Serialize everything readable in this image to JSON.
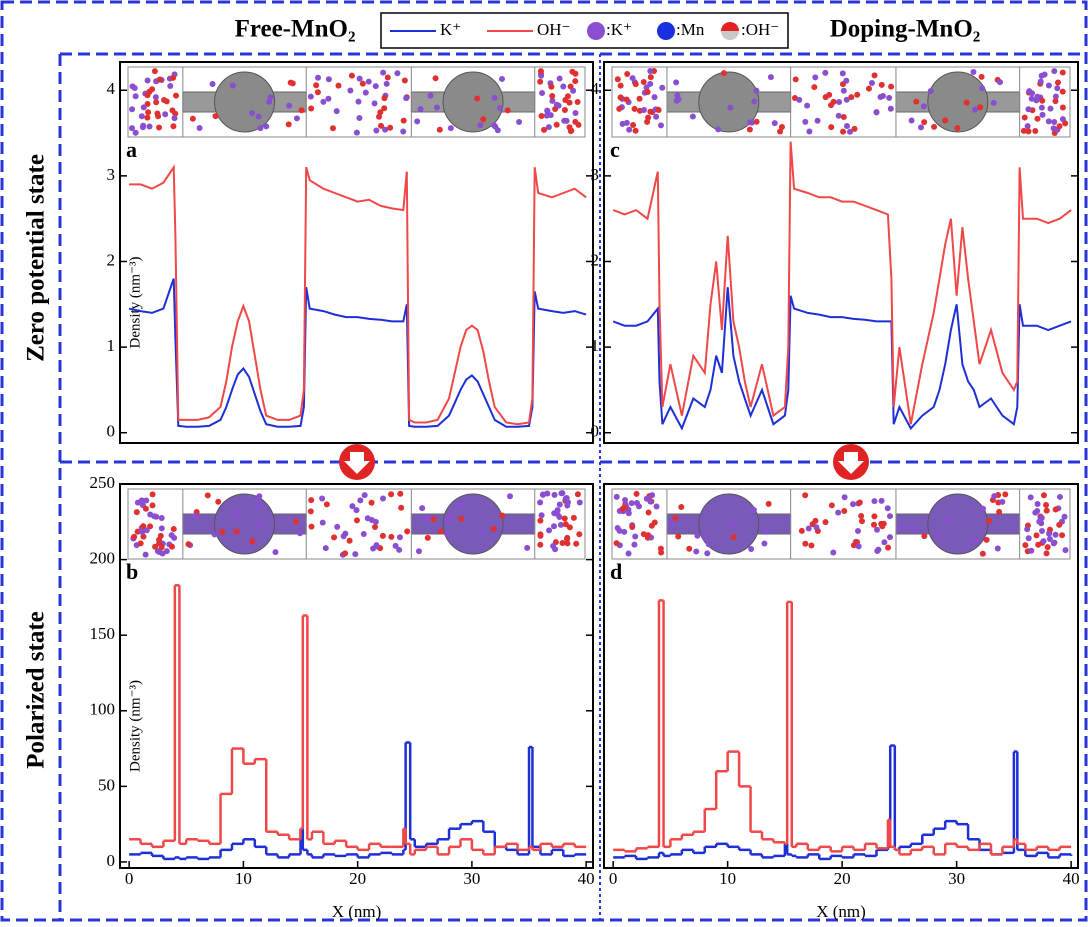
{
  "column_titles": [
    "Free-MnO₂",
    "Doping-MnO₂"
  ],
  "row_titles": [
    "Zero potential state",
    "Polarized state"
  ],
  "atom_legend": [
    ":K⁺",
    ":Mn",
    ":OH⁻"
  ],
  "chart_data": [
    {
      "type": "line",
      "label": "a",
      "y_label": "Density (nm⁻³)",
      "xlim": [
        -0.8,
        40.6
      ],
      "ylim": [
        -0.12,
        4.33
      ],
      "yticks": [
        0,
        1,
        2,
        3,
        4
      ],
      "x": [
        0,
        1,
        2,
        3,
        3.9,
        4.05,
        4.3,
        5,
        6,
        7,
        8,
        8.5,
        9,
        9.5,
        10,
        10.5,
        11,
        11.5,
        12,
        13,
        14,
        15,
        15.3,
        15.5,
        15.8,
        17,
        18,
        19,
        20,
        21,
        22,
        23,
        24,
        24.3,
        24.5,
        25,
        26,
        27,
        28,
        28.5,
        29,
        29.5,
        30,
        30.5,
        31,
        31.5,
        32,
        33,
        34,
        35,
        35.3,
        35.5,
        35.8,
        37,
        38,
        39,
        40
      ],
      "series": [
        {
          "name": "K⁺",
          "color": "#1f2fd6",
          "values": [
            1.45,
            1.42,
            1.4,
            1.45,
            1.8,
            1.1,
            0.08,
            0.07,
            0.07,
            0.08,
            0.15,
            0.3,
            0.5,
            0.68,
            0.75,
            0.65,
            0.45,
            0.25,
            0.1,
            0.07,
            0.07,
            0.08,
            0.3,
            1.7,
            1.45,
            1.42,
            1.38,
            1.35,
            1.35,
            1.33,
            1.32,
            1.3,
            1.3,
            1.5,
            0.08,
            0.07,
            0.07,
            0.08,
            0.2,
            0.35,
            0.5,
            0.62,
            0.67,
            0.6,
            0.45,
            0.3,
            0.15,
            0.07,
            0.07,
            0.08,
            0.3,
            1.65,
            1.45,
            1.42,
            1.4,
            1.42,
            1.38
          ]
        },
        {
          "name": "OH⁻",
          "color": "#f04848",
          "values": [
            2.9,
            2.9,
            2.85,
            2.92,
            3.1,
            2.3,
            0.15,
            0.15,
            0.15,
            0.18,
            0.3,
            0.6,
            1.0,
            1.3,
            1.48,
            1.3,
            0.9,
            0.5,
            0.2,
            0.15,
            0.15,
            0.2,
            0.5,
            3.1,
            2.95,
            2.85,
            2.8,
            2.75,
            2.7,
            2.72,
            2.65,
            2.62,
            2.6,
            3.05,
            0.15,
            0.12,
            0.12,
            0.15,
            0.4,
            0.7,
            1.0,
            1.2,
            1.25,
            1.2,
            0.95,
            0.6,
            0.3,
            0.12,
            0.1,
            0.12,
            0.4,
            3.1,
            2.8,
            2.75,
            2.8,
            2.85,
            2.75
          ]
        }
      ]
    },
    {
      "type": "step",
      "label": "b",
      "y_label": "Density (nm⁻³)",
      "x_label": "X (nm)",
      "xlim": [
        -0.8,
        40.6
      ],
      "ylim": [
        -4,
        250
      ],
      "yticks": [
        0,
        50,
        100,
        150,
        200,
        250
      ],
      "xticks": [
        0,
        10,
        20,
        30,
        40
      ],
      "x": [
        0,
        1,
        2,
        3,
        4,
        4.4,
        5,
        6,
        7,
        8,
        9,
        10,
        11,
        12,
        13,
        14,
        15,
        15.2,
        15.6,
        16,
        17,
        18,
        19,
        20,
        21,
        22,
        23,
        24,
        24.2,
        24.6,
        25,
        26,
        27,
        28,
        29,
        30,
        31,
        32,
        33,
        34,
        35,
        35.3,
        36,
        37,
        38,
        39,
        40
      ],
      "series": [
        {
          "name": "K⁺",
          "color": "#1f2fd6",
          "values": [
            5,
            6,
            4,
            2,
            3,
            2,
            3,
            2,
            3,
            8,
            12,
            15,
            10,
            5,
            3,
            5,
            22,
            8,
            5,
            3,
            5,
            4,
            5,
            3,
            5,
            6,
            5,
            8,
            79,
            15,
            10,
            12,
            15,
            22,
            25,
            27,
            20,
            10,
            8,
            5,
            76,
            10,
            5,
            8,
            4,
            5,
            5
          ]
        },
        {
          "name": "OH⁻",
          "color": "#f04848",
          "values": [
            15,
            12,
            10,
            14,
            183,
            12,
            15,
            14,
            12,
            45,
            75,
            65,
            68,
            20,
            18,
            15,
            22,
            163,
            15,
            20,
            12,
            14,
            10,
            8,
            12,
            10,
            10,
            22,
            12,
            5,
            8,
            10,
            5,
            10,
            15,
            8,
            5,
            10,
            12,
            8,
            10,
            8,
            12,
            10,
            12,
            10,
            10
          ]
        }
      ]
    },
    {
      "type": "line",
      "label": "c",
      "xlim": [
        -0.8,
        40.6
      ],
      "ylim": [
        -0.12,
        4.33
      ],
      "yticks": [
        0,
        1,
        2,
        3,
        4
      ],
      "x": [
        0,
        1,
        2,
        3,
        3.9,
        4.05,
        4.3,
        5,
        6,
        7,
        8,
        8.5,
        9,
        9.5,
        10,
        10.5,
        11,
        11.5,
        12,
        13,
        14,
        15,
        15.3,
        15.5,
        15.8,
        17,
        18,
        19,
        20,
        21,
        22,
        23,
        24,
        24.3,
        24.5,
        25,
        26,
        27,
        28,
        28.5,
        29,
        29.5,
        30,
        30.5,
        31,
        31.5,
        32,
        33,
        34,
        35,
        35.3,
        35.5,
        35.8,
        37,
        38,
        39,
        40
      ],
      "series": [
        {
          "name": "K⁺",
          "color": "#1f2fd6",
          "values": [
            1.3,
            1.25,
            1.25,
            1.3,
            1.45,
            0.6,
            0.1,
            0.3,
            0.05,
            0.4,
            0.3,
            0.5,
            0.9,
            0.7,
            1.7,
            0.9,
            0.6,
            0.4,
            0.2,
            0.5,
            0.1,
            0.2,
            0.5,
            1.6,
            1.45,
            1.4,
            1.38,
            1.35,
            1.35,
            1.33,
            1.32,
            1.3,
            1.3,
            1.3,
            0.1,
            0.3,
            0.05,
            0.2,
            0.3,
            0.5,
            0.8,
            1.2,
            1.5,
            0.8,
            0.6,
            0.5,
            0.3,
            0.4,
            0.2,
            0.1,
            0.3,
            1.5,
            1.25,
            1.25,
            1.2,
            1.25,
            1.3
          ]
        },
        {
          "name": "OH⁻",
          "color": "#f04848",
          "values": [
            2.6,
            2.55,
            2.6,
            2.5,
            3.05,
            1.5,
            0.3,
            0.8,
            0.2,
            0.9,
            0.7,
            1.5,
            2.0,
            1.2,
            2.3,
            1.3,
            1.0,
            0.6,
            0.3,
            0.8,
            0.2,
            0.3,
            1.0,
            3.4,
            2.85,
            2.8,
            2.75,
            2.75,
            2.7,
            2.7,
            2.65,
            2.6,
            2.55,
            1.8,
            0.3,
            1.0,
            0.1,
            0.8,
            1.4,
            1.8,
            2.2,
            2.5,
            1.6,
            2.4,
            1.8,
            1.3,
            0.8,
            1.2,
            0.7,
            0.5,
            0.6,
            3.1,
            2.5,
            2.5,
            2.45,
            2.5,
            2.6
          ]
        }
      ]
    },
    {
      "type": "step",
      "label": "d",
      "x_label": "X (nm)",
      "xlim": [
        -0.8,
        40.6
      ],
      "ylim": [
        -4,
        250
      ],
      "xticks": [
        0,
        10,
        20,
        30,
        40
      ],
      "x": [
        0,
        1,
        2,
        3,
        4,
        4.4,
        5,
        6,
        7,
        8,
        9,
        10,
        11,
        12,
        13,
        14,
        15,
        15.2,
        15.6,
        16,
        17,
        18,
        19,
        20,
        21,
        22,
        23,
        24,
        24.2,
        24.6,
        25,
        26,
        27,
        28,
        29,
        30,
        31,
        32,
        33,
        34,
        35,
        35.3,
        36,
        37,
        38,
        39,
        40
      ],
      "series": [
        {
          "name": "K⁺",
          "color": "#1f2fd6",
          "values": [
            3,
            4,
            2,
            3,
            6,
            4,
            5,
            8,
            6,
            10,
            12,
            10,
            8,
            5,
            3,
            4,
            12,
            5,
            4,
            3,
            5,
            2,
            4,
            3,
            5,
            4,
            8,
            10,
            77,
            8,
            10,
            12,
            18,
            22,
            27,
            25,
            15,
            8,
            5,
            6,
            73,
            8,
            4,
            6,
            3,
            5,
            4
          ]
        },
        {
          "name": "OH⁻",
          "color": "#f04848",
          "values": [
            8,
            7,
            9,
            10,
            173,
            10,
            15,
            18,
            20,
            35,
            60,
            73,
            50,
            20,
            15,
            13,
            12,
            172,
            10,
            12,
            8,
            10,
            7,
            10,
            8,
            12,
            9,
            28,
            10,
            8,
            5,
            8,
            10,
            5,
            12,
            10,
            8,
            12,
            5,
            10,
            15,
            12,
            8,
            10,
            8,
            10,
            10
          ]
        }
      ]
    }
  ]
}
